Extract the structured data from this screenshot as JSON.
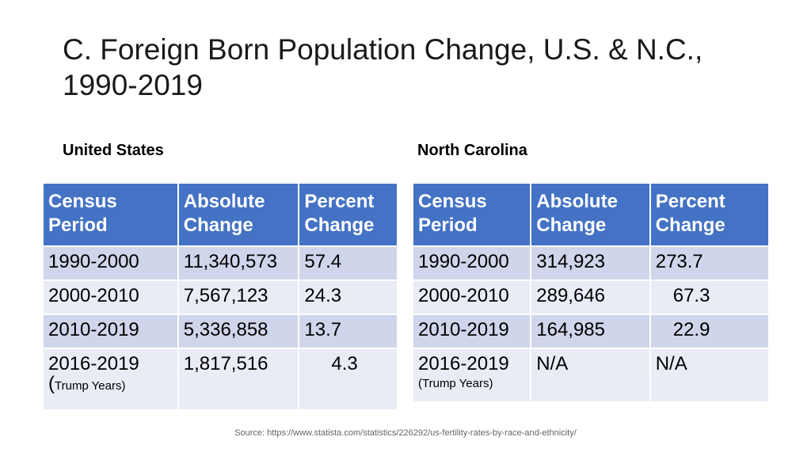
{
  "title": "C. Foreign Born Population Change, U.S. & N.C., 1990-2019",
  "us": {
    "heading": "United States",
    "headers": [
      "Census Period",
      "Absolute Change",
      "Percent Change"
    ],
    "rows": [
      {
        "period": "1990-2000",
        "absolute": "11,340,573",
        "percent": "57.4"
      },
      {
        "period": "2000-2010",
        "absolute": "7,567,123",
        "percent": "24.3"
      },
      {
        "period": "2010-2019",
        "absolute": "5,336,858",
        "percent": "13.7"
      },
      {
        "period": "2016-2019",
        "paren": "(",
        "note": "Trump Years)",
        "absolute": "1,817,516",
        "percent": "4.3"
      }
    ]
  },
  "nc": {
    "heading": "North Carolina",
    "headers": [
      "Census Period",
      "Absolute Change",
      "Percent Change"
    ],
    "rows": [
      {
        "period": "1990-2000",
        "absolute": "314,923",
        "percent": "273.7"
      },
      {
        "period": "2000-2010",
        "absolute": "289,646",
        "percent": "67.3"
      },
      {
        "period": "2010-2019",
        "absolute": "164,985",
        "percent": "22.9"
      },
      {
        "period": "2016-2019",
        "note": "(Trump Years)",
        "absolute": "N/A",
        "percent": "N/A"
      }
    ]
  },
  "source": "Source: https://www.statista.com/statistics/226292/us-fertility-rates-by-race-and-ethnicity/"
}
